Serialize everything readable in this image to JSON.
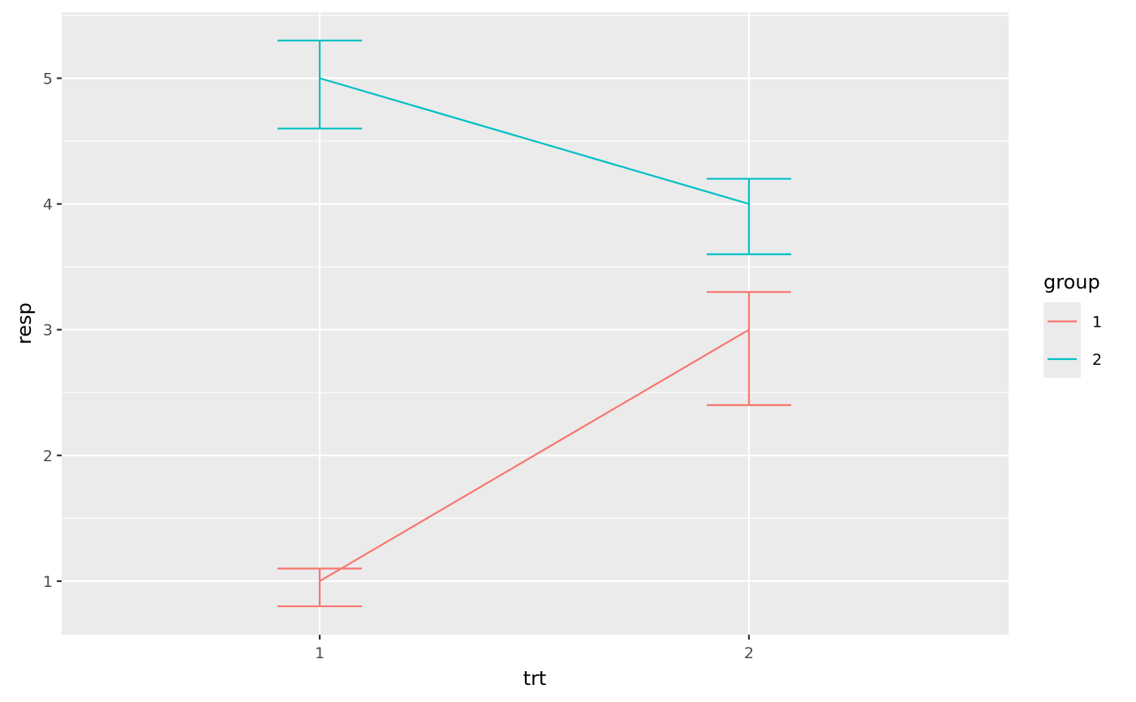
{
  "chart_data": {
    "type": "line",
    "xlabel": "trt",
    "ylabel": "resp",
    "x_categories": [
      "1",
      "2"
    ],
    "ylim": [
      0.6,
      5.5
    ],
    "y_ticks": [
      "1",
      "2",
      "3",
      "4",
      "5"
    ],
    "grid": true,
    "background": "#ebebeb",
    "legend": {
      "title": "group",
      "position": "right",
      "entries": [
        "1",
        "2"
      ]
    },
    "series": [
      {
        "name": "1",
        "color": "#f8766d",
        "points": [
          {
            "x": "1",
            "y": 1,
            "lower": 0.8,
            "upper": 1.1
          },
          {
            "x": "2",
            "y": 3,
            "lower": 2.4,
            "upper": 3.3
          }
        ]
      },
      {
        "name": "2",
        "color": "#00bfc4",
        "points": [
          {
            "x": "1",
            "y": 5,
            "lower": 4.6,
            "upper": 5.3
          },
          {
            "x": "2",
            "y": 4,
            "lower": 3.6,
            "upper": 4.2
          }
        ]
      }
    ]
  }
}
